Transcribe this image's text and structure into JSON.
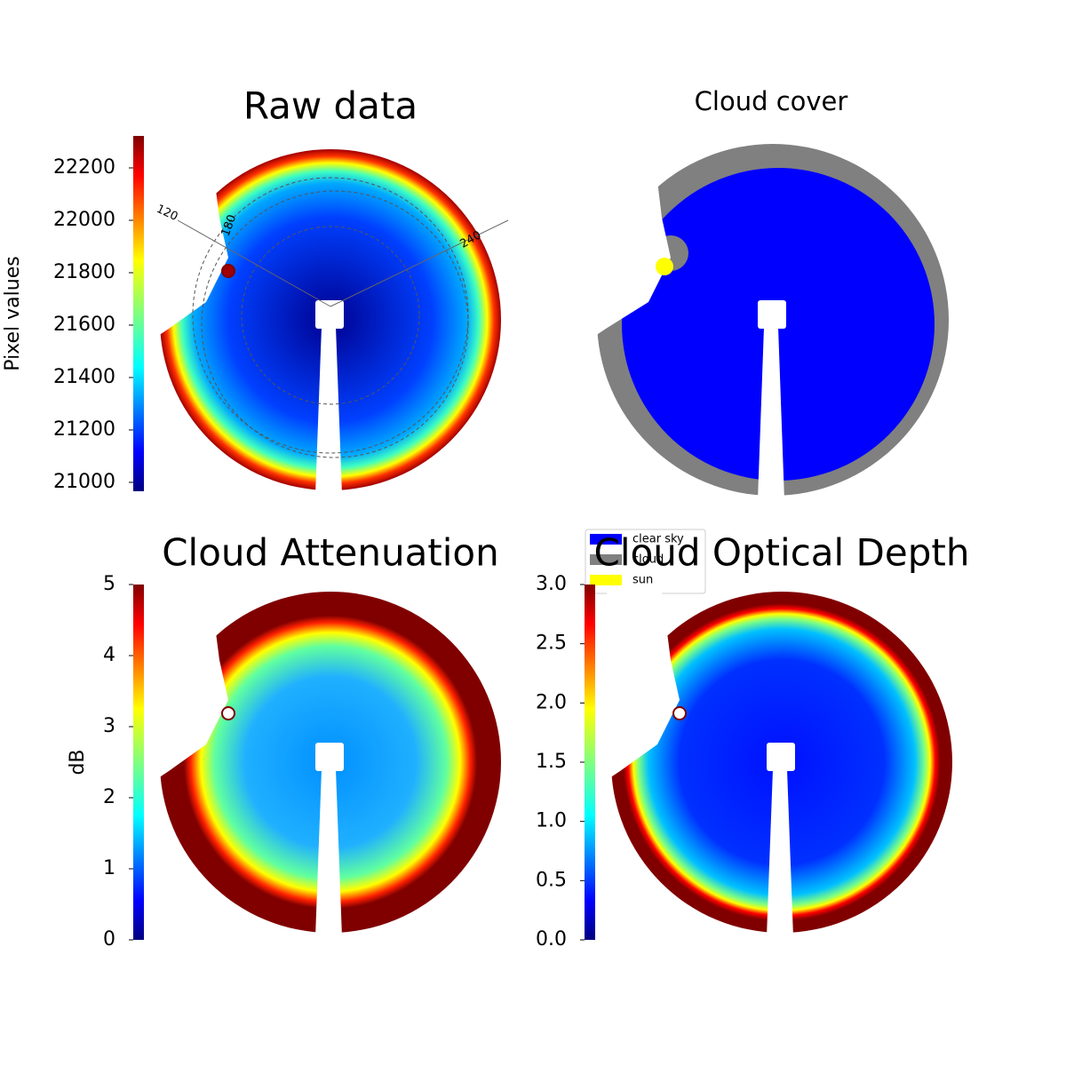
{
  "chart_data": [
    {
      "type": "sky-image",
      "title": "Raw data",
      "colormap": "jet",
      "colorbar": {
        "label": "Pixel values",
        "ylim": [
          20966,
          22322
        ],
        "yticks": [
          21000,
          21200,
          21400,
          21600,
          21800,
          22000,
          22200
        ]
      },
      "azimuth_labels": [
        "120",
        "180",
        "240"
      ]
    },
    {
      "type": "category-map",
      "title": "Cloud cover",
      "series": [
        {
          "name": "clear sky",
          "color": "#0000ff"
        },
        {
          "name": "cloud",
          "color": "#808080"
        },
        {
          "name": "sun",
          "color": "#ffff00"
        }
      ]
    },
    {
      "type": "sky-image",
      "title": "Cloud Attenuation",
      "colormap": "jet",
      "colorbar": {
        "label": "dB",
        "ylim": [
          0,
          5
        ],
        "yticks": [
          0,
          1,
          2,
          3,
          4,
          5
        ]
      }
    },
    {
      "type": "sky-image",
      "title": "Cloud Optical Depth",
      "colormap": "jet",
      "colorbar": {
        "ylim": [
          0,
          3
        ],
        "yticks": [
          {
            "value": 0,
            "label": "0.0"
          },
          {
            "value": 0.5,
            "label": "0.5"
          },
          {
            "value": 1,
            "label": "1.0"
          },
          {
            "value": 1.5,
            "label": "1.5"
          },
          {
            "value": 2,
            "label": "2.0"
          },
          {
            "value": 2.5,
            "label": "2.5"
          },
          {
            "value": 3,
            "label": "3.0"
          }
        ]
      }
    }
  ]
}
